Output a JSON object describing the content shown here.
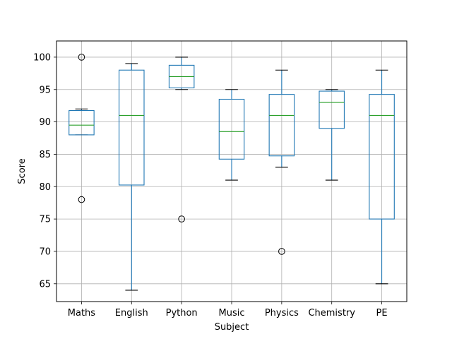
{
  "chart_data": {
    "type": "box",
    "title": "",
    "xlabel": "Subject",
    "ylabel": "Score",
    "ylim": [
      62.25,
      102.5
    ],
    "yticks": [
      65,
      70,
      75,
      80,
      85,
      90,
      95,
      100
    ],
    "grid": true,
    "categories": [
      "Maths",
      "English",
      "Python",
      "Music",
      "Physics",
      "Chemistry",
      "PE"
    ],
    "boxes": [
      {
        "category": "Maths",
        "whisker_low": 88,
        "q1": 88,
        "median": 89.5,
        "q3": 91.75,
        "whisker_high": 92,
        "outliers": [
          100,
          78
        ]
      },
      {
        "category": "English",
        "whisker_low": 64,
        "q1": 80.25,
        "median": 91,
        "q3": 98,
        "whisker_high": 99,
        "outliers": []
      },
      {
        "category": "Python",
        "whisker_low": 95,
        "q1": 95.25,
        "median": 97,
        "q3": 98.75,
        "whisker_high": 100,
        "outliers": [
          75
        ]
      },
      {
        "category": "Music",
        "whisker_low": 81,
        "q1": 84.25,
        "median": 88.5,
        "q3": 93.5,
        "whisker_high": 95,
        "outliers": []
      },
      {
        "category": "Physics",
        "whisker_low": 83,
        "q1": 84.75,
        "median": 91,
        "q3": 94.25,
        "whisker_high": 98,
        "outliers": [
          70
        ]
      },
      {
        "category": "Chemistry",
        "whisker_low": 81,
        "q1": 89,
        "median": 93,
        "q3": 94.75,
        "whisker_high": 95,
        "outliers": []
      },
      {
        "category": "PE",
        "whisker_low": 65,
        "q1": 75,
        "median": 91,
        "q3": 94.25,
        "whisker_high": 98,
        "outliers": []
      }
    ],
    "colors": {
      "box": "#1f77b4",
      "median": "#2ca02c",
      "whisker": "#1f77b4",
      "cap": "#000000",
      "outlier": "#000000",
      "grid": "#b0b0b0",
      "axes": "#000000"
    }
  }
}
